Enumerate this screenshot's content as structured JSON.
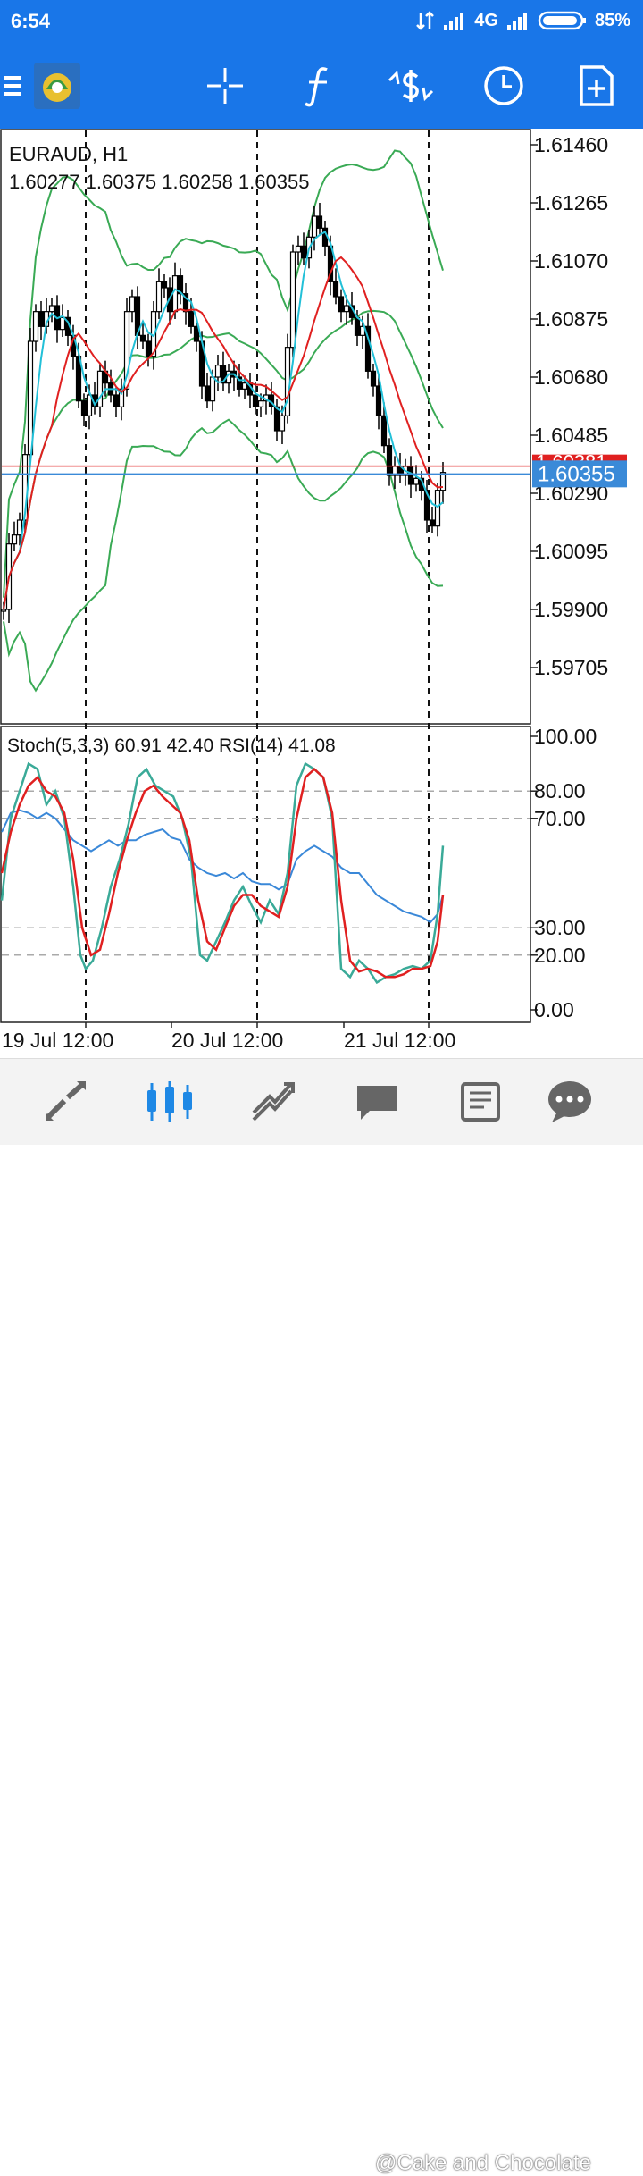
{
  "status_bar": {
    "time": "6:54",
    "network": "4G",
    "battery": "85%"
  },
  "toolbar": {
    "items": [
      "menu-icon",
      "app-logo",
      "crosshair-icon",
      "indicators-icon",
      "objects-icon",
      "timeframe-icon",
      "add-template-icon"
    ]
  },
  "chart": {
    "symbol_title": "EURAUD, H1",
    "ohlc": "1.60277 1.60375 1.60258 1.60355",
    "price_axis": [
      "1.61460",
      "1.61265",
      "1.61070",
      "1.60875",
      "1.60680",
      "1.60485",
      "1.60290",
      "1.60095",
      "1.59900",
      "1.59705"
    ],
    "ask_label": "1.60381",
    "bid_label": "1.60355",
    "indicator_title": "Stoch(5,3,3) 60.91 42.40 RSI(14) 41.08",
    "indicator_axis": [
      "100.00",
      "80.00",
      "70.00",
      "30.00",
      "20.00",
      "0.00"
    ],
    "time_axis": [
      "19 Jul 12:00",
      "20 Jul 12:00",
      "21 Jul 12:00"
    ],
    "colors": {
      "ask": "#e02020",
      "bid": "#3a8ad8",
      "ma_red": "#e02020",
      "ma_cyan": "#22c0d8",
      "bands": "#3aaa55",
      "stoch_main": "#3aaa98",
      "stoch_signal": "#e02020",
      "rsi": "#3a88d8"
    }
  },
  "bottom_nav": {
    "items": [
      "quotes-icon",
      "chart-icon",
      "trade-icon",
      "history-icon",
      "news-icon",
      "chat-icon"
    ]
  },
  "watermark": "@Cake and Chocolate"
}
